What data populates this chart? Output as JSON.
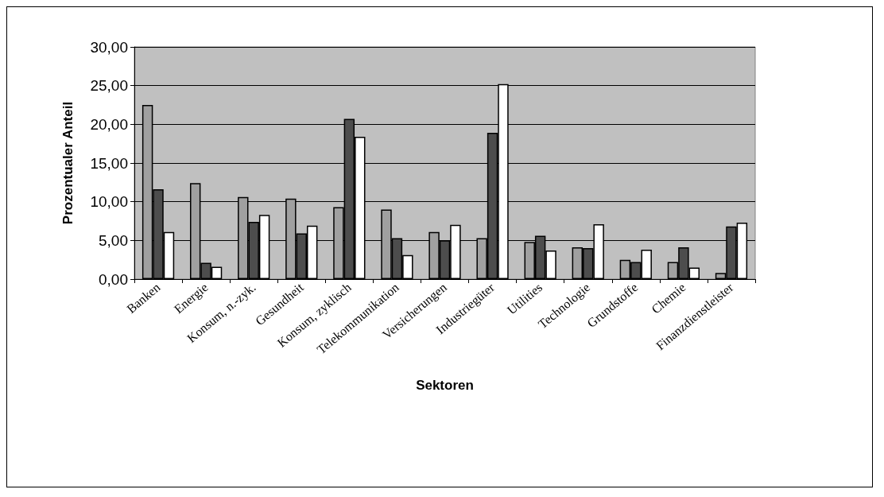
{
  "chart_data": {
    "type": "bar",
    "xlabel": "Sektoren",
    "ylabel": "Prozentualer Anteil",
    "categories": [
      "Banken",
      "Energie",
      "Konsum, n.-zyk.",
      "Gesundheit",
      "Konsum, zyklisch",
      "Telekommunikation",
      "Versicherungen",
      "Industriegüter",
      "Utilities",
      "Technologie",
      "Grundstoffe",
      "Chemie",
      "Finanzdienstleister"
    ],
    "series": [
      {
        "color": "#a0a0a0",
        "values": [
          22.5,
          12.4,
          10.6,
          10.4,
          9.3,
          9.0,
          6.1,
          5.3,
          4.8,
          4.1,
          2.5,
          2.2,
          0.8
        ]
      },
      {
        "color": "#4d4d4d",
        "values": [
          11.6,
          2.1,
          7.4,
          5.9,
          20.7,
          5.3,
          5.0,
          18.9,
          5.6,
          4.0,
          2.2,
          4.1,
          6.8
        ]
      },
      {
        "color": "#ffffff",
        "values": [
          6.1,
          1.6,
          8.3,
          6.9,
          18.4,
          3.1,
          7.0,
          25.2,
          3.7,
          7.1,
          3.8,
          1.5,
          7.3
        ]
      }
    ],
    "ylim": [
      0,
      30
    ],
    "yticks": [
      {
        "value": 0,
        "label": "0,00"
      },
      {
        "value": 5,
        "label": "5,00"
      },
      {
        "value": 10,
        "label": "10,00"
      },
      {
        "value": 15,
        "label": "15,00"
      },
      {
        "value": 20,
        "label": "20,00"
      },
      {
        "value": 25,
        "label": "25,00"
      },
      {
        "value": 30,
        "label": "30,00"
      }
    ],
    "grid": "y"
  }
}
